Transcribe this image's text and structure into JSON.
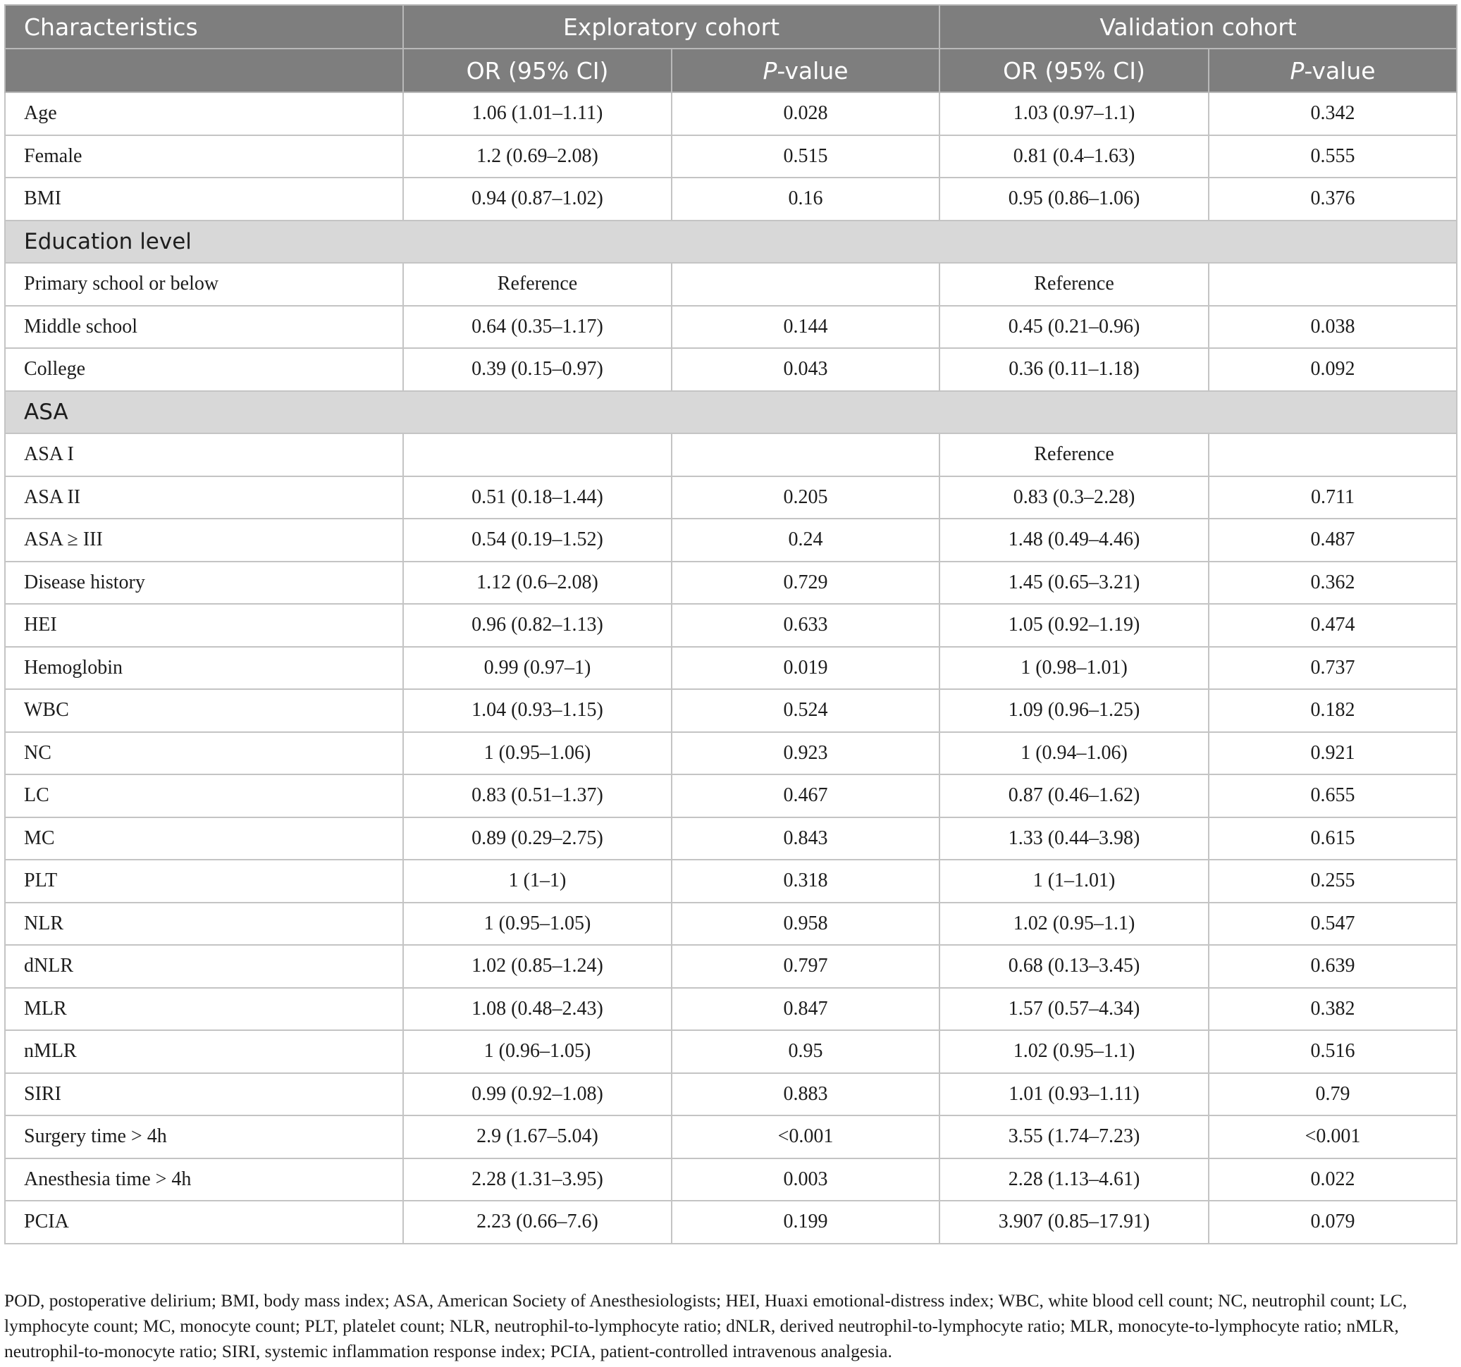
{
  "table": {
    "header": {
      "characteristics": "Characteristics",
      "exploratory": "Exploratory cohort",
      "validation": "Validation cohort",
      "or_ci": "OR (95% CI)",
      "p_italic": "P",
      "p_suffix": "-value"
    },
    "rows": [
      {
        "type": "row",
        "label": "Age",
        "e_or": "1.06 (1.01–1.11)",
        "e_p": "0.028",
        "v_or": "1.03 (0.97–1.1)",
        "v_p": "0.342"
      },
      {
        "type": "row",
        "label": "Female",
        "e_or": "1.2 (0.69–2.08)",
        "e_p": "0.515",
        "v_or": "0.81 (0.4–1.63)",
        "v_p": "0.555"
      },
      {
        "type": "row",
        "label": "BMI",
        "e_or": "0.94 (0.87–1.02)",
        "e_p": "0.16",
        "v_or": "0.95 (0.86–1.06)",
        "v_p": "0.376"
      },
      {
        "type": "section",
        "label": "Education level"
      },
      {
        "type": "row",
        "label": "Primary school or below",
        "e_or": "Reference",
        "e_p": "",
        "v_or": "Reference",
        "v_p": ""
      },
      {
        "type": "row",
        "label": "Middle school",
        "e_or": "0.64 (0.35–1.17)",
        "e_p": "0.144",
        "v_or": "0.45 (0.21–0.96)",
        "v_p": "0.038"
      },
      {
        "type": "row",
        "label": "College",
        "e_or": "0.39 (0.15–0.97)",
        "e_p": "0.043",
        "v_or": "0.36 (0.11–1.18)",
        "v_p": "0.092"
      },
      {
        "type": "section",
        "label": "ASA"
      },
      {
        "type": "row",
        "label": "ASA I",
        "e_or": "",
        "e_p": "",
        "v_or": "Reference",
        "v_p": ""
      },
      {
        "type": "row",
        "label": "ASA II",
        "e_or": "0.51 (0.18–1.44)",
        "e_p": "0.205",
        "v_or": "0.83 (0.3–2.28)",
        "v_p": "0.711"
      },
      {
        "type": "row",
        "label": "ASA ≥ III",
        "e_or": "0.54 (0.19–1.52)",
        "e_p": "0.24",
        "v_or": "1.48 (0.49–4.46)",
        "v_p": "0.487"
      },
      {
        "type": "row",
        "label": "Disease history",
        "e_or": "1.12 (0.6–2.08)",
        "e_p": "0.729",
        "v_or": "1.45 (0.65–3.21)",
        "v_p": "0.362"
      },
      {
        "type": "row",
        "label": "HEI",
        "e_or": "0.96 (0.82–1.13)",
        "e_p": "0.633",
        "v_or": "1.05 (0.92–1.19)",
        "v_p": "0.474"
      },
      {
        "type": "row",
        "label": "Hemoglobin",
        "e_or": "0.99 (0.97–1)",
        "e_p": "0.019",
        "v_or": "1 (0.98–1.01)",
        "v_p": "0.737"
      },
      {
        "type": "row",
        "label": "WBC",
        "e_or": "1.04 (0.93–1.15)",
        "e_p": "0.524",
        "v_or": "1.09 (0.96–1.25)",
        "v_p": "0.182"
      },
      {
        "type": "row",
        "label": "NC",
        "e_or": "1 (0.95–1.06)",
        "e_p": "0.923",
        "v_or": "1 (0.94–1.06)",
        "v_p": "0.921"
      },
      {
        "type": "row",
        "label": "LC",
        "e_or": "0.83 (0.51–1.37)",
        "e_p": "0.467",
        "v_or": "0.87 (0.46–1.62)",
        "v_p": "0.655"
      },
      {
        "type": "row",
        "label": "MC",
        "e_or": "0.89 (0.29–2.75)",
        "e_p": "0.843",
        "v_or": "1.33 (0.44–3.98)",
        "v_p": "0.615"
      },
      {
        "type": "row",
        "label": "PLT",
        "e_or": "1 (1–1)",
        "e_p": "0.318",
        "v_or": "1 (1–1.01)",
        "v_p": "0.255"
      },
      {
        "type": "row",
        "label": "NLR",
        "e_or": "1 (0.95–1.05)",
        "e_p": "0.958",
        "v_or": "1.02 (0.95–1.1)",
        "v_p": "0.547"
      },
      {
        "type": "row",
        "label": "dNLR",
        "e_or": "1.02 (0.85–1.24)",
        "e_p": "0.797",
        "v_or": "0.68 (0.13–3.45)",
        "v_p": "0.639"
      },
      {
        "type": "row",
        "label": "MLR",
        "e_or": "1.08 (0.48–2.43)",
        "e_p": "0.847",
        "v_or": "1.57 (0.57–4.34)",
        "v_p": "0.382"
      },
      {
        "type": "row",
        "label": "nMLR",
        "e_or": "1 (0.96–1.05)",
        "e_p": "0.95",
        "v_or": "1.02 (0.95–1.1)",
        "v_p": "0.516"
      },
      {
        "type": "row",
        "label": "SIRI",
        "e_or": "0.99 (0.92–1.08)",
        "e_p": "0.883",
        "v_or": "1.01 (0.93–1.11)",
        "v_p": "0.79"
      },
      {
        "type": "row",
        "label": "Surgery time > 4h",
        "e_or": "2.9 (1.67–5.04)",
        "e_p": "<0.001",
        "v_or": "3.55 (1.74–7.23)",
        "v_p": "<0.001"
      },
      {
        "type": "row",
        "label": "Anesthesia time > 4h",
        "e_or": "2.28 (1.31–3.95)",
        "e_p": "0.003",
        "v_or": "2.28 (1.13–4.61)",
        "v_p": "0.022"
      },
      {
        "type": "row",
        "label": "PCIA",
        "e_or": "2.23 (0.66–7.6)",
        "e_p": "0.199",
        "v_or": "3.907 (0.85–17.91)",
        "v_p": "0.079"
      }
    ]
  },
  "footnote": "POD, postoperative delirium; BMI, body mass index; ASA, American Society of Anesthesiologists; HEI, Huaxi emotional-distress index; WBC, white blood cell count; NC, neutrophil count; LC, lymphocyte count; MC, monocyte count; PLT, platelet count; NLR, neutrophil-to-lymphocyte ratio; dNLR, derived neutrophil-to-lymphocyte ratio; MLR, monocyte-to-lymphocyte ratio; nMLR, neutrophil-to-monocyte ratio; SIRI, systemic inflammation response index; PCIA, patient-controlled intravenous analgesia."
}
